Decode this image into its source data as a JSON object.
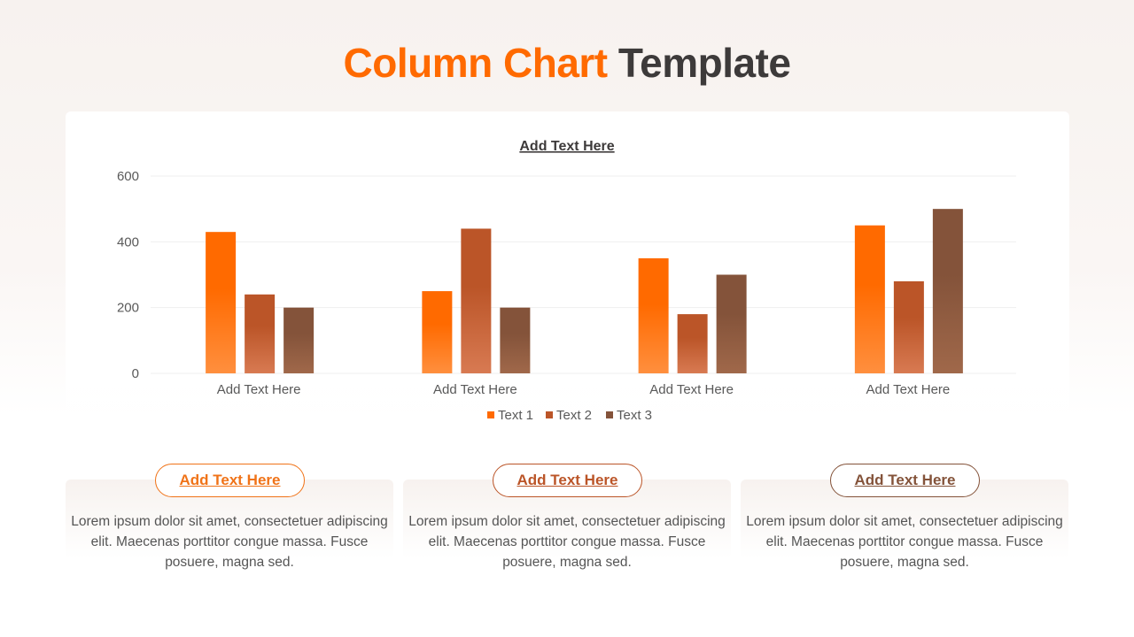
{
  "title": {
    "accent": "Column Chart",
    "rest": "Template"
  },
  "chart_data": {
    "type": "bar",
    "title": "Add Text Here",
    "categories": [
      "Add Text Here",
      "Add Text Here",
      "Add Text Here",
      "Add Text Here"
    ],
    "series": [
      {
        "name": "Text 1",
        "values": [
          430,
          250,
          350,
          450
        ],
        "color": "#ff6a00",
        "color2": "#ff8f3e"
      },
      {
        "name": "Text 2",
        "values": [
          240,
          440,
          180,
          280
        ],
        "color": "#bb5528",
        "color2": "#d87a52"
      },
      {
        "name": "Text 3",
        "values": [
          200,
          200,
          300,
          500
        ],
        "color": "#84533a",
        "color2": "#a0684a"
      }
    ],
    "yticks": [
      0,
      200,
      400,
      600
    ],
    "ylim": [
      0,
      600
    ],
    "grid": true,
    "legend": "bottom"
  },
  "cards": [
    {
      "label": "Add Text Here",
      "color": "#f07318",
      "text": "Lorem ipsum dolor sit amet, consectetuer adipiscing elit. Maecenas porttitor congue massa. Fusce posuere, magna sed."
    },
    {
      "label": "Add Text Here",
      "color": "#bb5528",
      "text": "Lorem ipsum dolor sit amet, consectetuer adipiscing elit. Maecenas porttitor congue massa. Fusce posuere, magna sed."
    },
    {
      "label": "Add Text Here",
      "color": "#84533a",
      "text": "Lorem ipsum dolor sit amet, consectetuer adipiscing elit. Maecenas porttitor congue massa. Fusce posuere, magna sed."
    }
  ]
}
